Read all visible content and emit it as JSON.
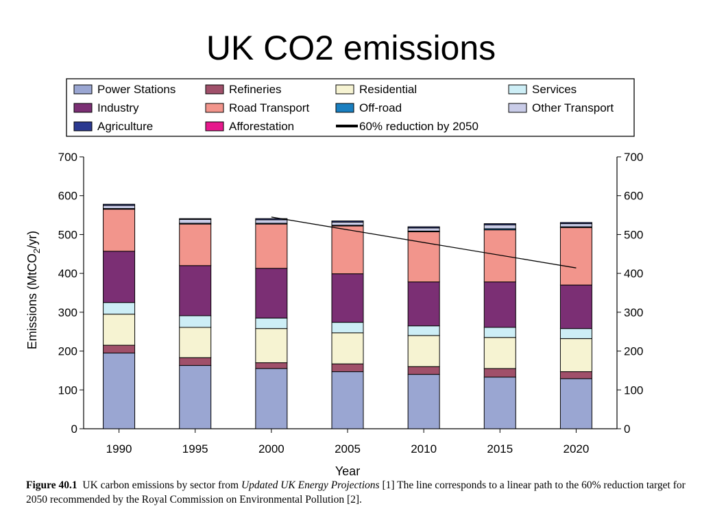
{
  "slide": {
    "title": "UK CO2 emissions"
  },
  "caption": {
    "figure_label": "Figure 40.1",
    "text_before": "UK carbon emissions by sector from ",
    "source_title": "Updated UK Energy Projections",
    "text_after": " [1] The line corresponds to a linear path to the 60% reduction target for 2050 recommended by the Royal Commission on Environmental Pollution [2]."
  },
  "colors": {
    "power_stations": "#9aa6d2",
    "refineries": "#a0506a",
    "residential": "#f6f3d2",
    "services": "#cdeef6",
    "industry": "#7b2f74",
    "road_transport": "#f2958c",
    "off_road": "#1a7fc0",
    "other_transport": "#c9cce8",
    "agriculture": "#2b3990",
    "afforestation": "#e6198c",
    "target_line": "#000000"
  },
  "chart_data": {
    "type": "bar",
    "stacked": true,
    "categories": [
      "1990",
      "1995",
      "2000",
      "2005",
      "2010",
      "2015",
      "2020"
    ],
    "xlabel": "Year",
    "ylabel": "Emissions (MtCO2/yr)",
    "ylabel_parts": {
      "before": "Emissions (MtCO",
      "sub": "2",
      "after": "/yr)"
    },
    "ylim": [
      0,
      700
    ],
    "yticks": [
      "0",
      "100",
      "200",
      "300",
      "400",
      "500",
      "600",
      "700"
    ],
    "grid": false,
    "legend_position": "top",
    "series": [
      {
        "name": "Power Stations",
        "color_key": "power_stations",
        "values": [
          195,
          163,
          155,
          147,
          140,
          133,
          129
        ]
      },
      {
        "name": "Refineries",
        "color_key": "refineries",
        "values": [
          20,
          20,
          15,
          20,
          20,
          22,
          18
        ]
      },
      {
        "name": "Residential",
        "color_key": "residential",
        "values": [
          80,
          78,
          88,
          80,
          80,
          80,
          85
        ]
      },
      {
        "name": "Services",
        "color_key": "services",
        "values": [
          30,
          30,
          27,
          27,
          25,
          26,
          26
        ]
      },
      {
        "name": "Industry",
        "color_key": "industry",
        "values": [
          132,
          129,
          128,
          125,
          113,
          117,
          112
        ]
      },
      {
        "name": "Road Transport",
        "color_key": "road_transport",
        "values": [
          108,
          107,
          114,
          123,
          129,
          134,
          148
        ]
      },
      {
        "name": "Off-road",
        "color_key": "off_road",
        "values": [
          2,
          2,
          2,
          2,
          2,
          3,
          2
        ]
      },
      {
        "name": "Other Transport",
        "color_key": "other_transport",
        "values": [
          8,
          10,
          9,
          8,
          8,
          10,
          8
        ]
      },
      {
        "name": "Agriculture",
        "color_key": "agriculture",
        "values": [
          3,
          2,
          3,
          3,
          3,
          3,
          3
        ]
      },
      {
        "name": "Afforestation",
        "color_key": "afforestation",
        "values": [
          0,
          0,
          0,
          0,
          0,
          0,
          0
        ]
      }
    ],
    "line": {
      "name": "60% reduction by 2050",
      "x": [
        "2000",
        "2020"
      ],
      "y": [
        545,
        414
      ]
    },
    "legend": [
      {
        "label": "Power Stations",
        "kind": "box",
        "color_key": "power_stations"
      },
      {
        "label": "Refineries",
        "kind": "box",
        "color_key": "refineries"
      },
      {
        "label": "Residential",
        "kind": "box",
        "color_key": "residential"
      },
      {
        "label": "Services",
        "kind": "box",
        "color_key": "services"
      },
      {
        "label": "Industry",
        "kind": "box",
        "color_key": "industry"
      },
      {
        "label": "Road Transport",
        "kind": "box",
        "color_key": "road_transport"
      },
      {
        "label": "Off-road",
        "kind": "box",
        "color_key": "off_road"
      },
      {
        "label": "Other Transport",
        "kind": "box",
        "color_key": "other_transport"
      },
      {
        "label": "Agriculture",
        "kind": "box",
        "color_key": "agriculture"
      },
      {
        "label": "Afforestation",
        "kind": "box",
        "color_key": "afforestation"
      },
      {
        "label": "60% reduction by 2050",
        "kind": "line",
        "color_key": "target_line"
      }
    ]
  }
}
